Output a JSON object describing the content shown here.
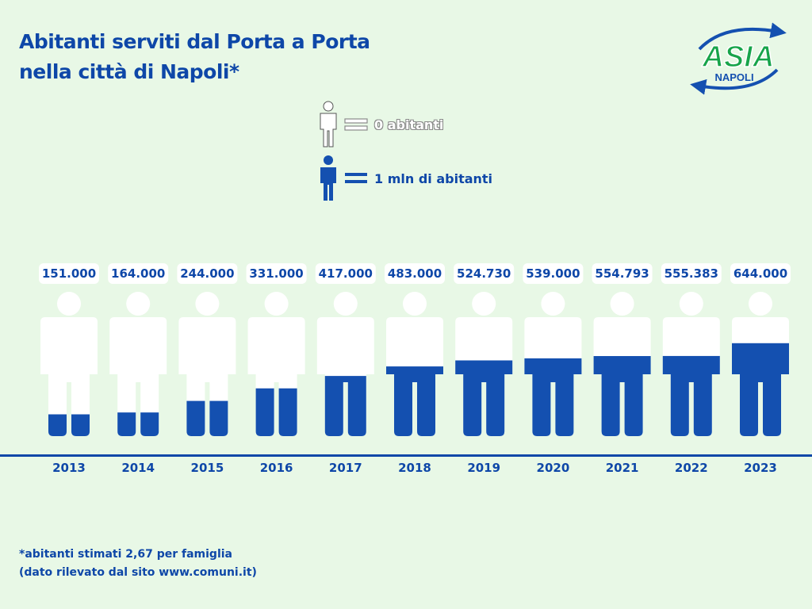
{
  "title": {
    "line1": "Abitanti serviti dal Porta a Porta",
    "line2": "nella città di Napoli*"
  },
  "logo": {
    "word": "ASIA",
    "sub": "NAPOLI",
    "icon": "recycle-arrows-logo"
  },
  "legend": {
    "empty_label": "0 abitanti",
    "full_label": "1 mln di abitanti",
    "empty_icon": "person-outline-icon",
    "full_icon": "person-filled-icon"
  },
  "colors": {
    "accent": "#0e47a8",
    "fill": "#1450b0",
    "figure": "#ffffff",
    "logo_green": "#17a44a",
    "background": "#e8f8e6"
  },
  "chart_data": {
    "type": "bar",
    "mark": "pictogram-person-fill",
    "unit_per_icon": 1000000,
    "categories": [
      "2013",
      "2014",
      "2015",
      "2016",
      "2017",
      "2018",
      "2019",
      "2020",
      "2021",
      "2022",
      "2023"
    ],
    "labels": [
      "151.000",
      "164.000",
      "244.000",
      "331.000",
      "417.000",
      "483.000",
      "524.730",
      "539.000",
      "554.793",
      "555.383",
      "644.000"
    ],
    "values": [
      151000,
      164000,
      244000,
      331000,
      417000,
      483000,
      524730,
      539000,
      554793,
      555383,
      644000
    ],
    "ylim": [
      0,
      1000000
    ]
  },
  "footnote": {
    "line1": "*abitanti stimati 2,67 per famiglia",
    "line2": "(dato rilevato dal sito www.comuni.it)"
  }
}
